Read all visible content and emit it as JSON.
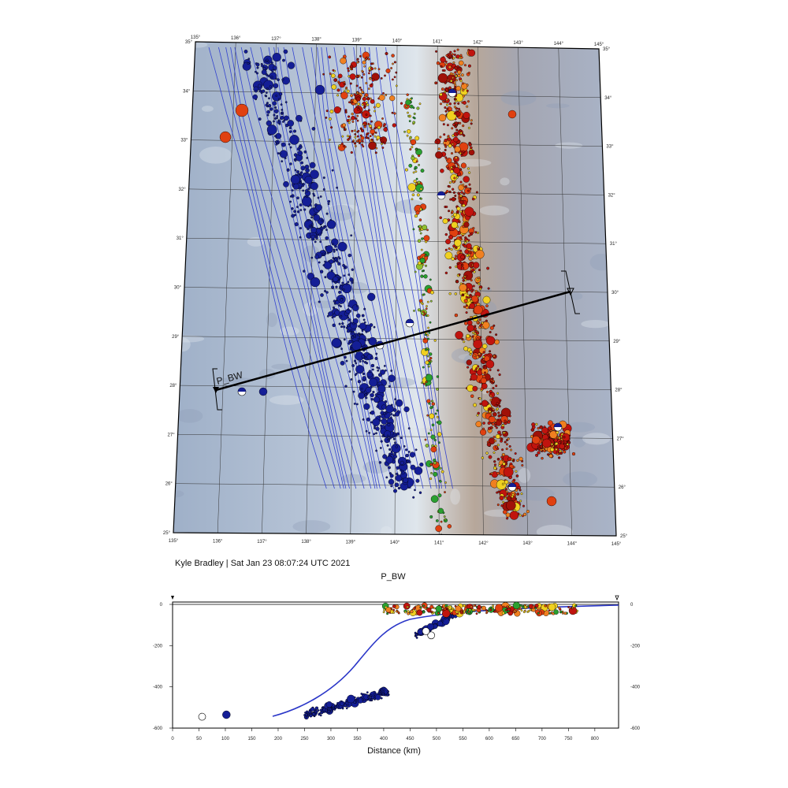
{
  "map": {
    "lon_ticks": [
      "135°",
      "136°",
      "137°",
      "138°",
      "139°",
      "140°",
      "141°",
      "142°",
      "143°",
      "144°",
      "145°"
    ],
    "lat_ticks": [
      "25°",
      "26°",
      "27°",
      "28°",
      "29°",
      "30°",
      "31°",
      "32°",
      "33°",
      "34°",
      "35°"
    ],
    "profile_label": "P_BW",
    "colors": {
      "shallow": "#c0140e",
      "intermediate_a": "#f0d020",
      "intermediate_b": "#2aa030",
      "deep": "#141e96",
      "slab_contour": "#2030d0",
      "ocean_deep": "#a9b4c8",
      "ocean_shallow": "#d6dde6"
    }
  },
  "credit": "Kyle Bradley | Sat Jan 23 08:07:24 UTC 2021",
  "profile": {
    "title": "P_BW",
    "xlabel": "Distance (km)",
    "x_ticks": [
      "0",
      "50",
      "100",
      "150",
      "200",
      "250",
      "300",
      "350",
      "400",
      "450",
      "500",
      "550",
      "600",
      "650",
      "700",
      "750",
      "800"
    ],
    "y_ticks": [
      "0",
      "-200",
      "-400",
      "-600"
    ]
  }
}
